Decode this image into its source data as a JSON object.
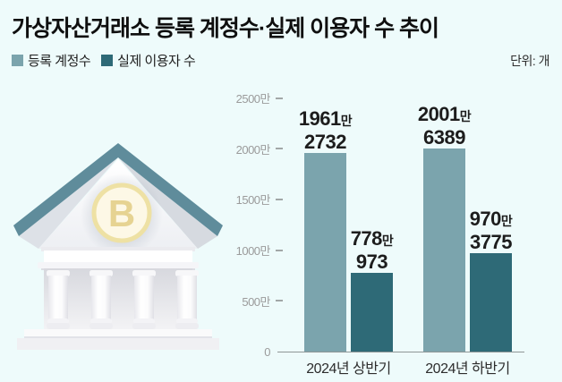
{
  "title": "가상자산거래소 등록 계정수·실제 이용자 수 추이",
  "unit_label": "단위: 개",
  "legend": [
    {
      "label": "등록 계정수",
      "color": "#7ba4ad"
    },
    {
      "label": "실제 이용자 수",
      "color": "#2e6a77"
    }
  ],
  "illustration": {
    "name": "bank-building-3d",
    "coin_letter": "B",
    "roof_color": "#5f8c9b",
    "coin_ring_color": "#eee1a4",
    "coin_letter_color": "#e6d392"
  },
  "chart_data": {
    "type": "bar",
    "title": "가상자산거래소 등록 계정수·실제 이용자 수 추이",
    "unit": "개",
    "categories": [
      "2024년 상반기",
      "2024년 하반기"
    ],
    "series": [
      {
        "name": "등록 계정수",
        "color": "#7ba4ad",
        "values": [
          19612732,
          20016389
        ],
        "value_labels": [
          {
            "number": "1961",
            "suffix": "만",
            "line2": "2732"
          },
          {
            "number": "2001",
            "suffix": "만",
            "line2": "6389"
          }
        ]
      },
      {
        "name": "실제 이용자 수",
        "color": "#2e6a77",
        "values": [
          7780973,
          9703775
        ],
        "value_labels": [
          {
            "number": "778",
            "suffix": "만",
            "line2": "973"
          },
          {
            "number": "970",
            "suffix": "만",
            "line2": "3775"
          }
        ]
      }
    ],
    "y_ticks": [
      "2500만",
      "2000만",
      "1500만",
      "1000만",
      "500만",
      "0"
    ],
    "y_tick_values": [
      25000000,
      20000000,
      15000000,
      10000000,
      5000000,
      0
    ],
    "ylim": [
      0,
      25000000
    ],
    "xlabel": "",
    "ylabel": "",
    "grid": false,
    "legend_position": "top-left"
  }
}
